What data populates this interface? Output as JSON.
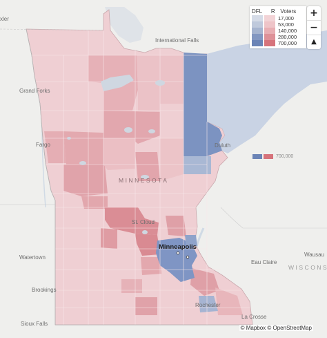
{
  "map": {
    "places": {
      "kxler": "xler",
      "international_falls": "International Falls",
      "grand_forks": "Grand Forks",
      "fargo": "Fargo",
      "duluth": "Duluth",
      "minnesota": "MINNESOTA",
      "st_cloud": "St. Cloud",
      "minneapolis": "Minneapolis",
      "watertown": "Watertown",
      "eau_claire": "Eau Claire",
      "wisconsin": "WISCONS",
      "wausau": "Wausau",
      "brookings": "Brookings",
      "rochester": "Rochester",
      "sioux_falls": "Sioux Falls",
      "la_crosse": "La Crosse"
    },
    "colors": {
      "water": "#d5dde6",
      "land": "#efefed",
      "border": "#b9b9b9"
    }
  },
  "legend": {
    "dfl_label": "DFL",
    "r_label": "R",
    "voters_label": "Voters",
    "rows": [
      {
        "value": "17,000",
        "dfl_color": "#d5dbe7",
        "r_color": "#f2d3d6"
      },
      {
        "value": "53,000",
        "dfl_color": "#bfc9dc",
        "r_color": "#eec4c8"
      },
      {
        "value": "140,000",
        "dfl_color": "#a6b4cf",
        "r_color": "#e8aeb3"
      },
      {
        "value": "280,000",
        "dfl_color": "#8397c1",
        "r_color": "#de9198"
      },
      {
        "value": "700,000",
        "dfl_color": "#6b84b6",
        "r_color": "#d6737b"
      }
    ],
    "ghost_value": "700,000"
  },
  "controls": {
    "zoom_in": "+",
    "zoom_out": "−",
    "compass": "▲"
  },
  "attribution": {
    "text": "© Mapbox © OpenStreetMap"
  }
}
